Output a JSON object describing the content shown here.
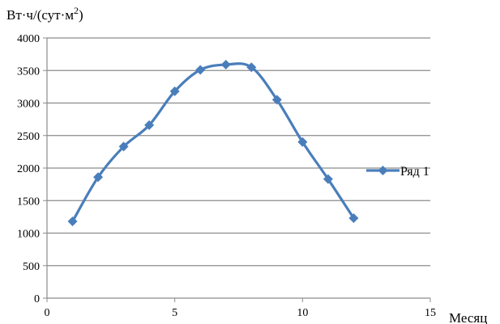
{
  "chart_data": {
    "type": "line",
    "title": "",
    "ylabel": "Вт·ч/(сут·м",
    "ylabel_sup": "2",
    "ylabel_end": ")",
    "xlabel": "Месяц",
    "xlim": [
      0,
      15
    ],
    "ylim": [
      0,
      4000
    ],
    "xticks": [
      0,
      5,
      10,
      15
    ],
    "yticks": [
      0,
      500,
      1000,
      1500,
      2000,
      2500,
      3000,
      3500,
      4000
    ],
    "grid": "horizontal",
    "smooth": true,
    "legend_position": "right",
    "series": [
      {
        "name": "Ряд 1",
        "color": "#4a7ebb",
        "marker": "diamond",
        "x": [
          1,
          2,
          3,
          4,
          5,
          6,
          7,
          8,
          9,
          10,
          11,
          12
        ],
        "y": [
          1180,
          1860,
          2330,
          2660,
          3180,
          3510,
          3590,
          3550,
          3050,
          2400,
          1830,
          1230
        ]
      }
    ]
  }
}
